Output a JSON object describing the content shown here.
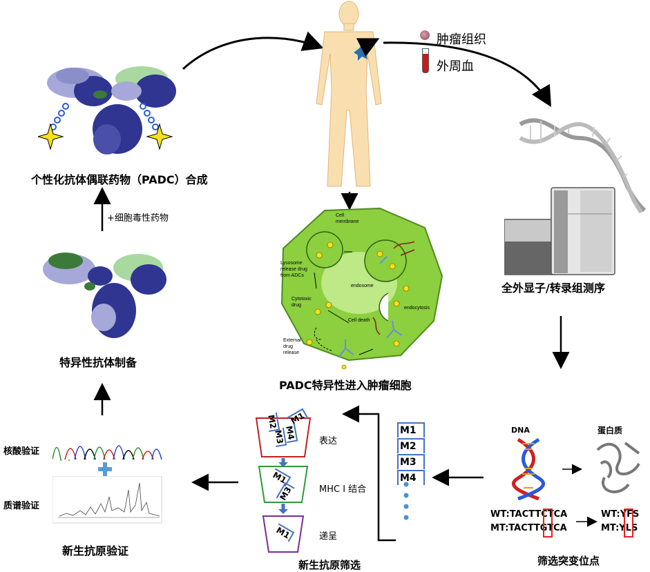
{
  "labels": {
    "padc_synthesis": "个性化抗体偶联药物（PADC）合成",
    "cytotoxic_drug": "+细胞毒性药物",
    "specific_antibody": "特异性抗体制备",
    "nucleic_acid_validation": "核酸验证",
    "mass_spec_validation": "质谱验证",
    "neoantigen_validation": "新生抗原验证",
    "tumor_tissue": "肿瘤组织",
    "peripheral_blood": "外周血",
    "sequencing": "全外显子/转录组测序",
    "padc_entry": "PADC特异性进入肿瘤细胞",
    "neoantigen_screening": "新生抗原筛选",
    "mutation_screening": "筛选突变位点",
    "dna": "DNA",
    "protein": "蛋白质",
    "expression": "表达",
    "mhc_binding": "MHC I 结合",
    "presentation": "递呈"
  },
  "cell_labels": {
    "membrane": "Cell membrane",
    "lysosome": "Lysosome release drug from ADCs",
    "endosome": "endosome",
    "endocytosis": "endocytosis",
    "cytotoxic": "Cytotoxic drug",
    "cell_death": "Cell death",
    "external": "External drug release"
  },
  "mutation": {
    "dna_wt": "WT:TACTTCTCA",
    "dna_mt": "MT:TACTTGTCA",
    "prot_wt": "WT:YFS",
    "prot_mt": "MT:YLS"
  },
  "candidates": [
    "M1",
    "M2",
    "M3",
    "M4"
  ],
  "funnel": {
    "stage1": [
      "M1",
      "M2",
      "M3",
      "M4"
    ],
    "stage2": [
      "M1",
      "M3"
    ],
    "stage3": [
      "M1"
    ]
  },
  "colors": {
    "cell_green": "#8ccf3f",
    "antibody_dark": "#2f3591",
    "antibody_light": "#a5a8d8",
    "antibody_green": "#3c7a3a",
    "mutation_red": "#e02020",
    "funnel_blue": "#4472c4"
  }
}
